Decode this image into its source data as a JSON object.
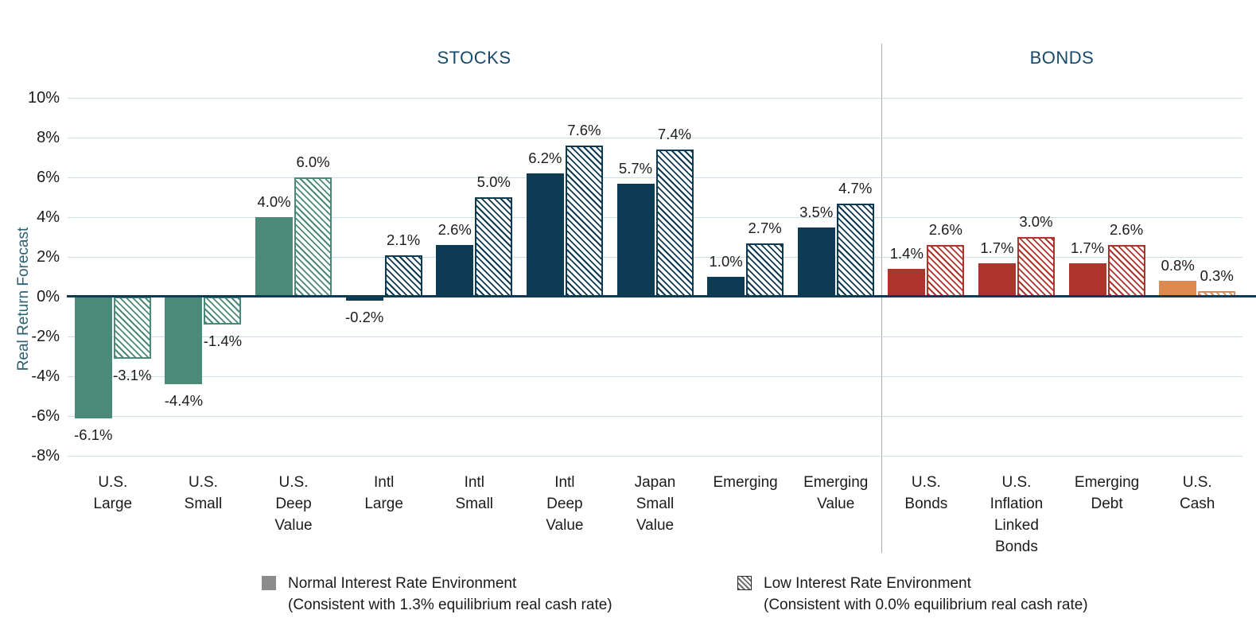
{
  "chart_data": {
    "type": "bar",
    "ylabel": "Real Return Forecast",
    "ylim": [
      -8,
      10
    ],
    "ytick_step": 2,
    "ytick_suffix": "%",
    "grid": true,
    "sections": [
      {
        "label": "STOCKS",
        "from": 0,
        "to": 8
      },
      {
        "label": "BONDS",
        "from": 9,
        "to": 12
      }
    ],
    "series": [
      {
        "id": "normal",
        "style": "solid",
        "name": "Normal Interest Rate Environment"
      },
      {
        "id": "low",
        "style": "hatched",
        "name": "Low Interest Rate Environment"
      }
    ],
    "group_colors": {
      "us_stocks": "#4b8a79",
      "intl_stocks": "#0d3b53",
      "bonds": "#ad342b",
      "cash": "#dd8a50"
    },
    "categories": [
      {
        "lines": [
          "U.S.",
          "Large"
        ],
        "group": "us_stocks",
        "normal": -6.1,
        "low": -3.1
      },
      {
        "lines": [
          "U.S.",
          "Small"
        ],
        "group": "us_stocks",
        "normal": -4.4,
        "low": -1.4
      },
      {
        "lines": [
          "U.S.",
          "Deep",
          "Value"
        ],
        "group": "us_stocks",
        "normal": 4.0,
        "low": 6.0
      },
      {
        "lines": [
          "Intl",
          "Large"
        ],
        "group": "intl_stocks",
        "normal": -0.2,
        "low": 2.1
      },
      {
        "lines": [
          "Intl",
          "Small"
        ],
        "group": "intl_stocks",
        "normal": 2.6,
        "low": 5.0
      },
      {
        "lines": [
          "Intl",
          "Deep",
          "Value"
        ],
        "group": "intl_stocks",
        "normal": 6.2,
        "low": 7.6
      },
      {
        "lines": [
          "Japan",
          "Small",
          "Value"
        ],
        "group": "intl_stocks",
        "normal": 5.7,
        "low": 7.4
      },
      {
        "lines": [
          "Emerging"
        ],
        "group": "intl_stocks",
        "normal": 1.0,
        "low": 2.7
      },
      {
        "lines": [
          "Emerging",
          "Value"
        ],
        "group": "intl_stocks",
        "normal": 3.5,
        "low": 4.7
      },
      {
        "lines": [
          "U.S.",
          "Bonds"
        ],
        "group": "bonds",
        "normal": 1.4,
        "low": 2.6
      },
      {
        "lines": [
          "U.S.",
          "Inflation",
          "Linked",
          "Bonds"
        ],
        "group": "bonds",
        "normal": 1.7,
        "low": 3.0
      },
      {
        "lines": [
          "Emerging",
          "Debt"
        ],
        "group": "bonds",
        "normal": 1.7,
        "low": 2.6
      },
      {
        "lines": [
          "U.S.",
          "Cash"
        ],
        "group": "cash",
        "normal": 0.8,
        "low": 0.3
      }
    ]
  },
  "legend": {
    "items": [
      {
        "line1": "Normal Interest Rate Environment",
        "line2": "(Consistent with 1.3% equilibrium real cash rate)",
        "style": "solid"
      },
      {
        "line1": "Low Interest Rate Environment",
        "line2": "(Consistent with 0.0% equilibrium real cash rate)",
        "style": "hatched"
      }
    ]
  }
}
